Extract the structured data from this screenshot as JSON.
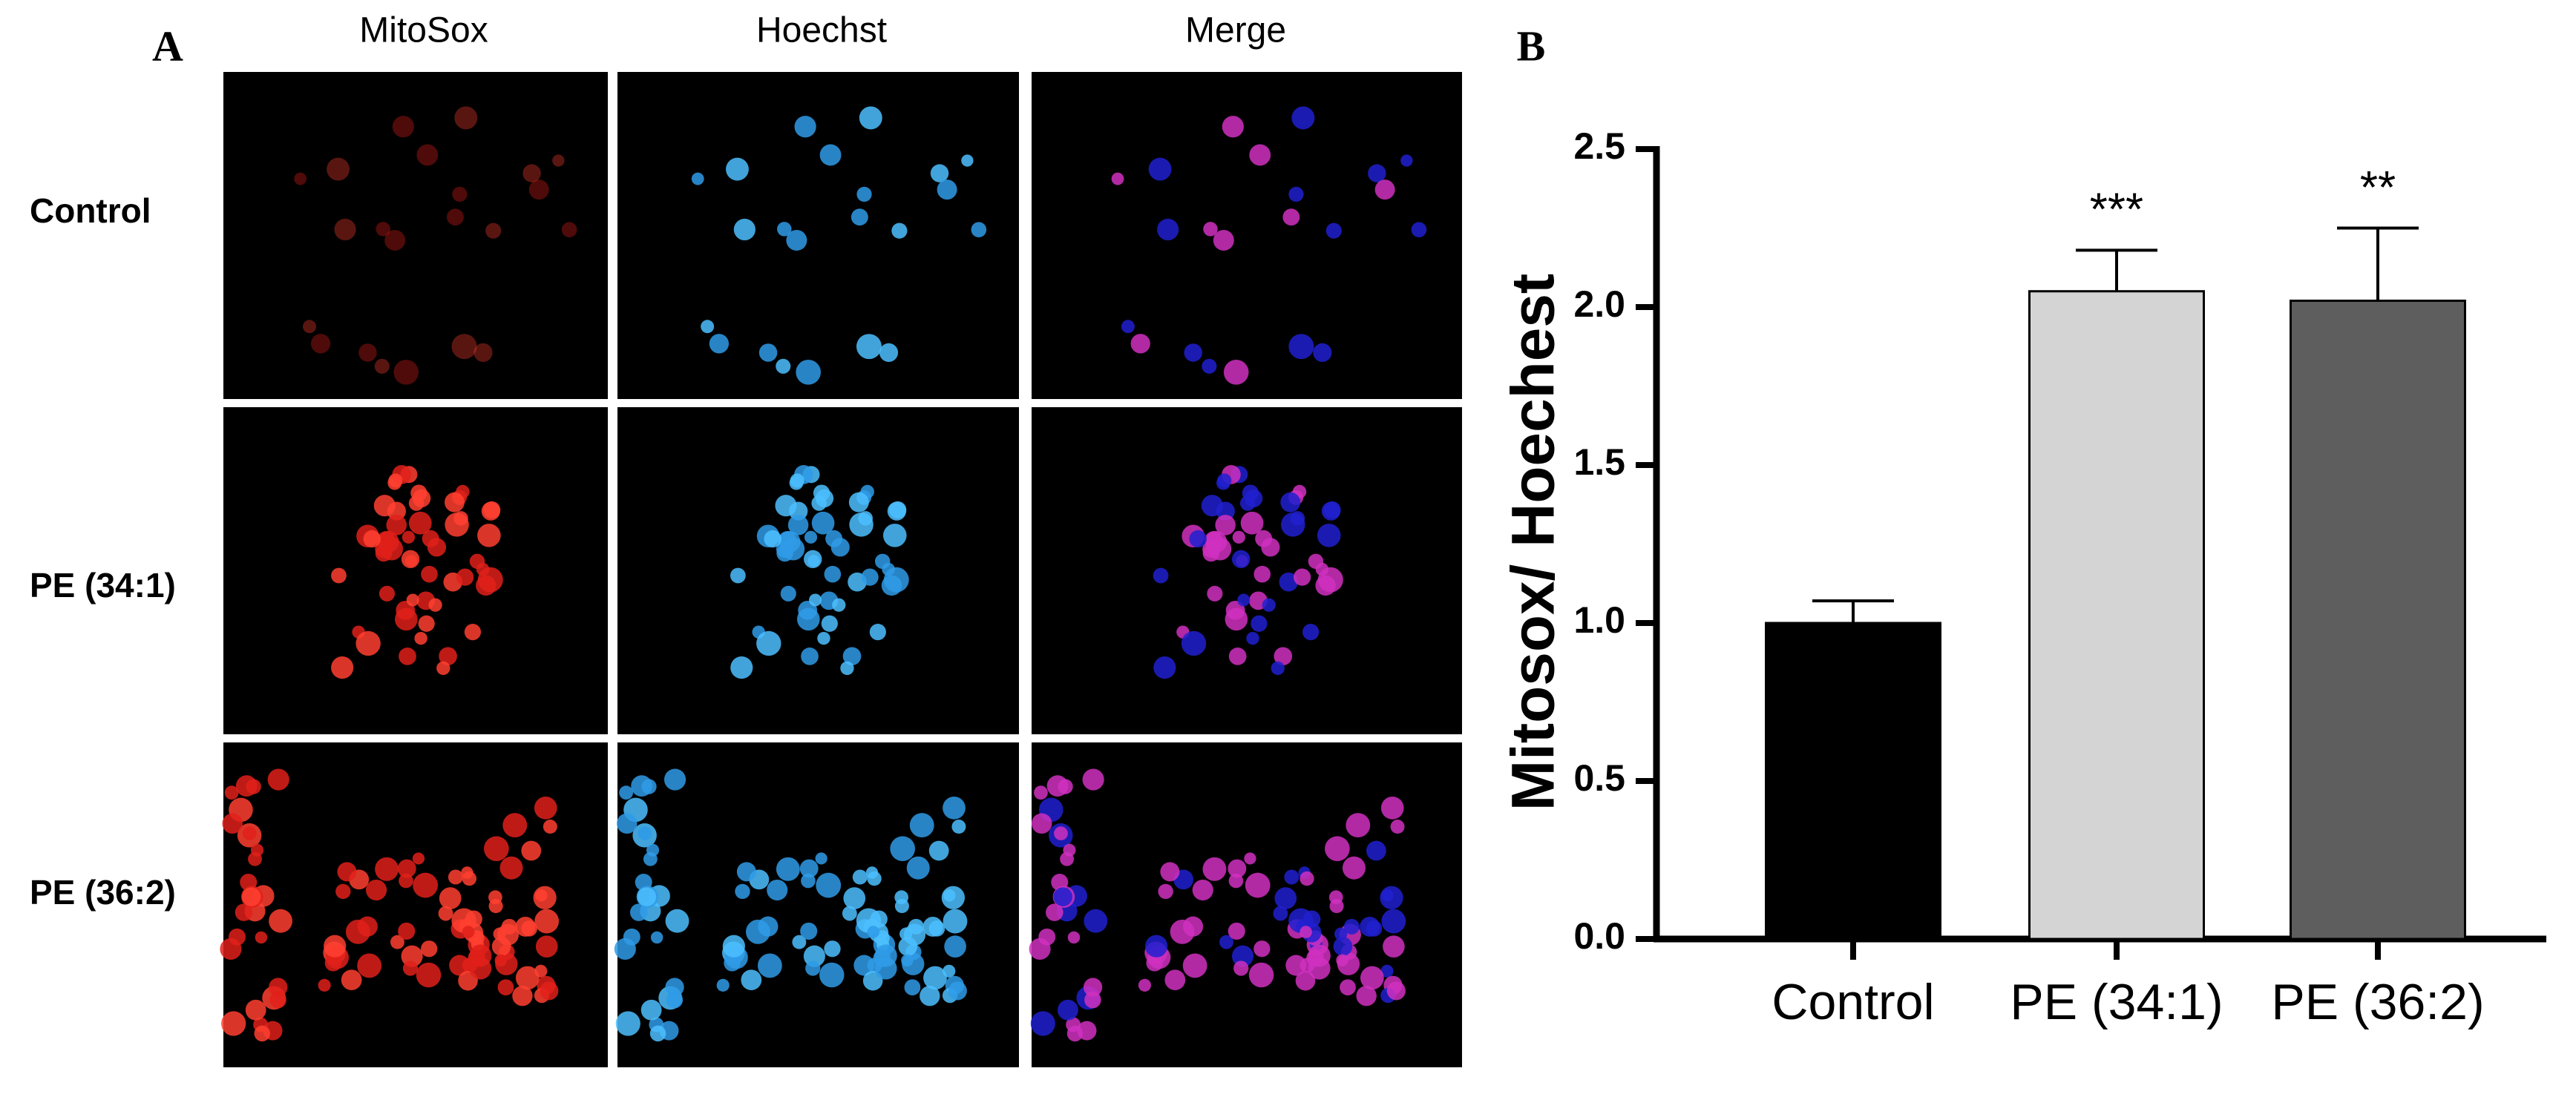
{
  "panel_a": {
    "label": "A",
    "columns": [
      "MitoSox",
      "Hoechst",
      "Merge"
    ],
    "rows": [
      "Control",
      "PE (34:1)",
      "PE (36:2)"
    ]
  },
  "chart_data": {
    "type": "bar",
    "panel_label": "B",
    "y_label": "Mitosox/ Hoechest",
    "categories": [
      "Control",
      "PE (34:1)",
      "PE (36:2)"
    ],
    "values": [
      1.0,
      2.05,
      2.02
    ],
    "errors": [
      0.07,
      0.13,
      0.23
    ],
    "colors": [
      "#000000",
      "#d4d4d4",
      "#5e5e5e"
    ],
    "annotations": [
      null,
      "***",
      "**"
    ],
    "ylim": [
      0,
      2.5
    ],
    "yticks": [
      {
        "value": 0,
        "label": "0.0"
      },
      0.5,
      {
        "value": 1,
        "label": "1.0"
      },
      1.5,
      {
        "value": 2,
        "label": "2.0"
      },
      2.5
    ]
  }
}
